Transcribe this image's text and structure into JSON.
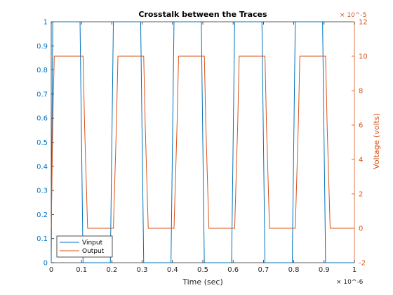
{
  "chart_data": {
    "type": "line",
    "title": "Crosstalk between the Traces",
    "xlabel": "Time (sec)",
    "ylabel_left": "",
    "ylabel_right": "Voltage (volts)",
    "xlim": [
      0,
      1.0
    ],
    "xlim_units_note": "×10^-6",
    "x_ticks": [
      "0",
      "0.1",
      "0.2",
      "0.3",
      "0.4",
      "0.5",
      "0.6",
      "0.7",
      "0.8",
      "0.9",
      "1"
    ],
    "x_exponent": "× 10^-6",
    "left_axis": {
      "ylim": [
        0,
        1
      ],
      "ticks": [
        "0",
        "0.1",
        "0.2",
        "0.3",
        "0.4",
        "0.5",
        "0.6",
        "0.7",
        "0.8",
        "0.9",
        "1"
      ]
    },
    "right_axis": {
      "ylim": [
        -2,
        12
      ],
      "ticks": [
        "-2",
        "0",
        "2",
        "4",
        "6",
        "8",
        "10",
        "12"
      ],
      "exponent": "× 10^-5"
    },
    "legend": {
      "placement": "bottom-left",
      "entries": [
        "Vinput",
        "Output"
      ]
    },
    "colors": {
      "vinput": "#0072BD",
      "output": "#D95319",
      "axis": "#262626",
      "right_axis": "#D95319"
    },
    "series": [
      {
        "name": "Vinput",
        "axis": "left",
        "x": [
          0,
          0.005,
          0.095,
          0.105,
          0.195,
          0.205,
          0.295,
          0.305,
          0.395,
          0.405,
          0.495,
          0.505,
          0.595,
          0.605,
          0.695,
          0.705,
          0.795,
          0.805,
          0.895,
          0.905,
          0.995,
          1.0
        ],
        "y": [
          0,
          1,
          1,
          0,
          0,
          1,
          1,
          0,
          0,
          1,
          1,
          0,
          0,
          1,
          1,
          0,
          0,
          1,
          1,
          0,
          0,
          0
        ]
      },
      {
        "name": "Output",
        "axis": "right",
        "x": [
          0,
          0.005,
          0.01,
          0.105,
          0.11,
          0.12,
          0.205,
          0.215,
          0.22,
          0.305,
          0.31,
          0.32,
          0.405,
          0.415,
          0.42,
          0.505,
          0.51,
          0.52,
          0.605,
          0.615,
          0.62,
          0.705,
          0.71,
          0.72,
          0.805,
          0.815,
          0.82,
          0.905,
          0.91,
          0.92,
          1.0
        ],
        "y": [
          0,
          6,
          10,
          10,
          6,
          0,
          0,
          6,
          10,
          10,
          6,
          0,
          0,
          6,
          10,
          10,
          6,
          0,
          0,
          6,
          10,
          10,
          6,
          0,
          0,
          6,
          10,
          10,
          6,
          0,
          0
        ]
      }
    ]
  }
}
